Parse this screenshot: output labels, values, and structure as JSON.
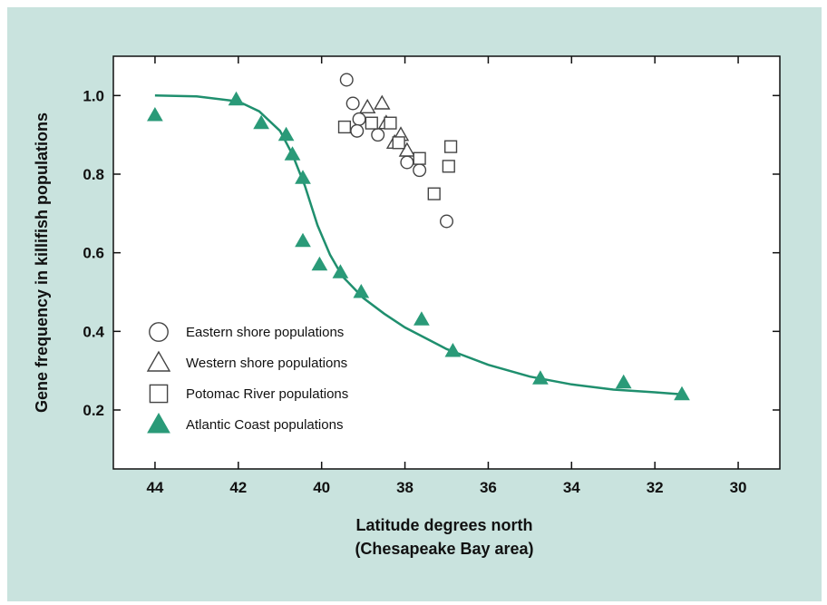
{
  "colors": {
    "background": "#c9e3de",
    "plot_background": "#ffffff",
    "atlantic_fill": "#2a9a78",
    "curve": "#1f8f6e",
    "axis": "#111111"
  },
  "chart_data": {
    "type": "scatter",
    "title": "",
    "xlabel": "Latitude degrees north",
    "xlabel_sub": "(Chesapeake Bay area)",
    "ylabel": "Gene frequency in killifish populations",
    "xlim": [
      45,
      29
    ],
    "ylim": [
      0.05,
      1.1
    ],
    "x_reversed": true,
    "grid": false,
    "legend_position": "left",
    "x_ticks": [
      44,
      42,
      40,
      38,
      36,
      34,
      32,
      30
    ],
    "x_tick_labels": [
      "44",
      "42",
      "40",
      "38",
      "36",
      "34",
      "32",
      "30"
    ],
    "y_ticks": [
      0.2,
      0.4,
      0.6,
      0.8,
      1.0
    ],
    "y_tick_labels": [
      "0.2",
      "0.4",
      "0.6",
      "0.8",
      "1.0"
    ],
    "series": [
      {
        "name": "Eastern shore populations",
        "marker": "circle",
        "points": [
          {
            "x": 39.4,
            "y": 1.04
          },
          {
            "x": 39.25,
            "y": 0.98
          },
          {
            "x": 39.1,
            "y": 0.94
          },
          {
            "x": 39.15,
            "y": 0.91
          },
          {
            "x": 38.65,
            "y": 0.9
          },
          {
            "x": 37.95,
            "y": 0.83
          },
          {
            "x": 37.65,
            "y": 0.81
          },
          {
            "x": 37.0,
            "y": 0.68
          }
        ]
      },
      {
        "name": "Western shore populations",
        "marker": "triangle-open",
        "points": [
          {
            "x": 38.9,
            "y": 0.97
          },
          {
            "x": 38.55,
            "y": 0.98
          },
          {
            "x": 38.45,
            "y": 0.93
          },
          {
            "x": 38.1,
            "y": 0.9
          },
          {
            "x": 38.25,
            "y": 0.88
          },
          {
            "x": 37.95,
            "y": 0.86
          }
        ]
      },
      {
        "name": "Potomac River populations",
        "marker": "square",
        "points": [
          {
            "x": 39.45,
            "y": 0.92
          },
          {
            "x": 38.8,
            "y": 0.93
          },
          {
            "x": 38.35,
            "y": 0.93
          },
          {
            "x": 38.15,
            "y": 0.88
          },
          {
            "x": 37.65,
            "y": 0.84
          },
          {
            "x": 36.9,
            "y": 0.87
          },
          {
            "x": 36.95,
            "y": 0.82
          },
          {
            "x": 37.3,
            "y": 0.75
          }
        ]
      },
      {
        "name": "Atlantic Coast populations",
        "marker": "triangle-filled",
        "points": [
          {
            "x": 44.0,
            "y": 0.95
          },
          {
            "x": 42.05,
            "y": 0.99
          },
          {
            "x": 41.45,
            "y": 0.93
          },
          {
            "x": 40.85,
            "y": 0.9
          },
          {
            "x": 40.7,
            "y": 0.85
          },
          {
            "x": 40.45,
            "y": 0.79
          },
          {
            "x": 40.45,
            "y": 0.63
          },
          {
            "x": 40.05,
            "y": 0.57
          },
          {
            "x": 39.55,
            "y": 0.55
          },
          {
            "x": 39.05,
            "y": 0.5
          },
          {
            "x": 37.6,
            "y": 0.43
          },
          {
            "x": 36.85,
            "y": 0.35
          },
          {
            "x": 34.75,
            "y": 0.28
          },
          {
            "x": 32.75,
            "y": 0.27
          },
          {
            "x": 31.35,
            "y": 0.24
          }
        ]
      }
    ],
    "fit_curve": {
      "series": "Atlantic Coast populations",
      "points": [
        [
          44.0,
          1.0
        ],
        [
          43.0,
          0.998
        ],
        [
          42.0,
          0.985
        ],
        [
          41.5,
          0.96
        ],
        [
          41.0,
          0.91
        ],
        [
          40.7,
          0.85
        ],
        [
          40.4,
          0.77
        ],
        [
          40.1,
          0.67
        ],
        [
          39.8,
          0.595
        ],
        [
          39.5,
          0.54
        ],
        [
          39.0,
          0.485
        ],
        [
          38.5,
          0.445
        ],
        [
          38.0,
          0.41
        ],
        [
          37.0,
          0.355
        ],
        [
          36.0,
          0.315
        ],
        [
          35.0,
          0.285
        ],
        [
          34.0,
          0.265
        ],
        [
          33.0,
          0.252
        ],
        [
          32.0,
          0.245
        ],
        [
          31.35,
          0.24
        ]
      ]
    }
  }
}
